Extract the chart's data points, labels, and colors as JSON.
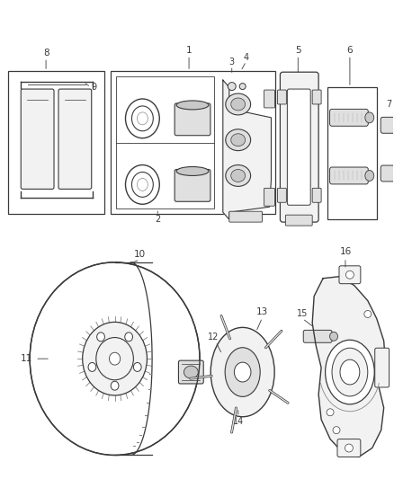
{
  "bg_color": "#ffffff",
  "line_color": "#3a3a3a",
  "label_color": "#3a3a3a",
  "fig_width": 4.38,
  "fig_height": 5.33,
  "dpi": 100,
  "fill_light": "#f2f2f2",
  "fill_mid": "#e0e0e0",
  "fill_dark": "#c8c8c8"
}
